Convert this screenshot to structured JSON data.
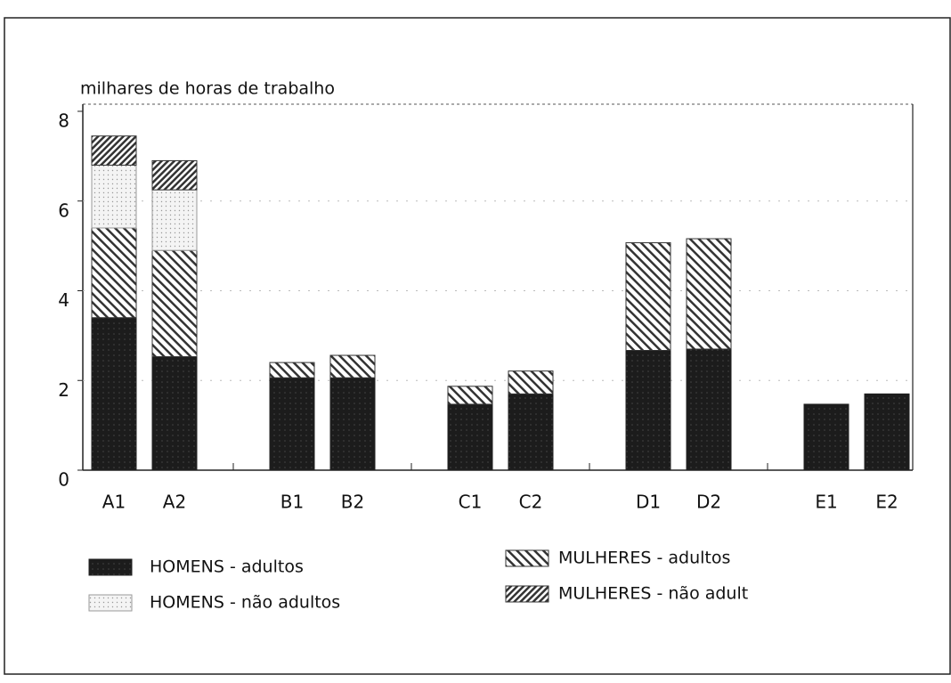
{
  "chart_data": {
    "type": "stacked_bar",
    "y_label": "milhares de horas de trabalho",
    "categories": [
      "A1",
      "A2",
      "B1",
      "B2",
      "C1",
      "C2",
      "D1",
      "D2",
      "E1",
      "E2"
    ],
    "series": [
      {
        "name": "HOMENS - adultos",
        "color": "#222222",
        "pattern": "solid",
        "values": [
          3.4,
          2.53,
          2.06,
          2.06,
          1.47,
          1.7,
          2.67,
          2.7,
          1.47,
          1.7
        ]
      },
      {
        "name": "MULHERES - adultos",
        "color": "#333333",
        "pattern": "hatch-back",
        "values": [
          2.0,
          2.37,
          0.34,
          0.5,
          0.4,
          0.51,
          2.4,
          2.46,
          0,
          0
        ]
      },
      {
        "name": "HOMENS - não adultos",
        "color": "#999999",
        "pattern": "dots",
        "values": [
          1.4,
          1.35,
          0,
          0,
          0,
          0,
          0,
          0,
          0,
          0
        ]
      },
      {
        "name": "MULHERES - não adult",
        "color": "#333333",
        "pattern": "hatch-fwd",
        "values": [
          0.65,
          0.65,
          0,
          0,
          0,
          0,
          0,
          0,
          0,
          0
        ]
      }
    ],
    "ylim": [
      0,
      8
    ],
    "yticks": [
      0,
      2,
      4,
      6,
      8
    ],
    "grid": true
  }
}
